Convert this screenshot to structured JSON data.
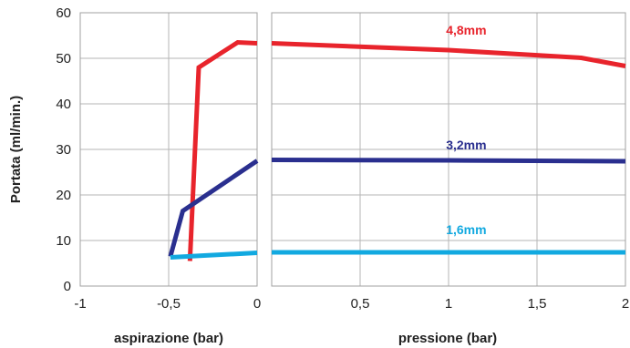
{
  "chart_data": {
    "type": "line",
    "ylabel": "Portata (ml/min.)",
    "ylim": [
      0,
      60
    ],
    "y_ticks": [
      "0",
      "10",
      "20",
      "30",
      "40",
      "50",
      "60"
    ],
    "grid": true,
    "panels": [
      {
        "name": "aspirazione",
        "xlabel": "aspirazione (bar)",
        "xlim": [
          -1,
          0
        ],
        "x_ticks": [
          "-1",
          "-0,5",
          "0"
        ],
        "series": [
          {
            "name": "4,8mm",
            "color": "#e8242c",
            "points": [
              [
                -0.38,
                5.5
              ],
              [
                -0.33,
                48
              ],
              [
                -0.11,
                53.5
              ],
              [
                0,
                53.3
              ]
            ]
          },
          {
            "name": "3,2mm",
            "color": "#2a2f8f",
            "points": [
              [
                -0.49,
                6.5
              ],
              [
                -0.42,
                16.5
              ],
              [
                0,
                27.5
              ]
            ]
          },
          {
            "name": "1,6mm",
            "color": "#12a9e0",
            "points": [
              [
                -0.49,
                6.3
              ],
              [
                -0.3,
                6.7
              ],
              [
                0,
                7.3
              ]
            ]
          }
        ]
      },
      {
        "name": "pressione",
        "xlabel": "pressione (bar)",
        "xlim": [
          0,
          2
        ],
        "x_ticks": [
          "0,5",
          "1",
          "1,5",
          "2"
        ],
        "series": [
          {
            "name": "4,8mm",
            "label": "4,8mm",
            "color": "#e8242c",
            "label_at": [
              1.1,
              55.2
            ],
            "points": [
              [
                0,
                53.3
              ],
              [
                1.0,
                51.8
              ],
              [
                1.75,
                50.1
              ],
              [
                2.0,
                48.3
              ]
            ]
          },
          {
            "name": "3,2mm",
            "label": "3,2mm",
            "color": "#2a2f8f",
            "label_at": [
              1.1,
              30.0
            ],
            "points": [
              [
                0,
                27.7
              ],
              [
                1.0,
                27.6
              ],
              [
                2.0,
                27.4
              ]
            ]
          },
          {
            "name": "1,6mm",
            "label": "1,6mm",
            "color": "#12a9e0",
            "label_at": [
              1.1,
              11.4
            ],
            "points": [
              [
                0,
                7.4
              ],
              [
                1.0,
                7.4
              ],
              [
                2.0,
                7.4
              ]
            ]
          }
        ]
      }
    ]
  }
}
